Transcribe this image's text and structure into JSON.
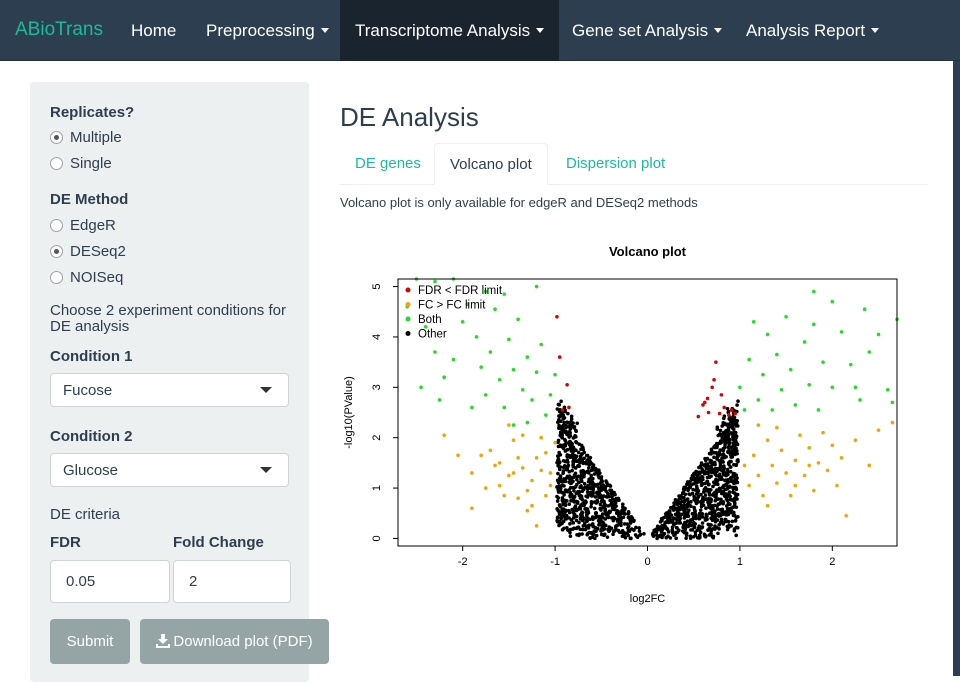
{
  "navbar": {
    "brand": "ABioTrans",
    "items": [
      {
        "label": "Home",
        "dropdown": false,
        "active": false
      },
      {
        "label": "Preprocessing",
        "dropdown": true,
        "active": false
      },
      {
        "label": "Transcriptome Analysis",
        "dropdown": true,
        "active": true
      },
      {
        "label": "Gene set Analysis",
        "dropdown": true,
        "active": false
      },
      {
        "label": "Analysis Report",
        "dropdown": true,
        "active": false
      }
    ]
  },
  "sidebar": {
    "replicates_label": "Replicates?",
    "replicates": [
      {
        "label": "Multiple",
        "selected": true
      },
      {
        "label": "Single",
        "selected": false
      }
    ],
    "method_label": "DE Method",
    "methods": [
      {
        "label": "EdgeR",
        "selected": false
      },
      {
        "label": "DESeq2",
        "selected": true
      },
      {
        "label": "NOISeq",
        "selected": false
      }
    ],
    "choose_text": "Choose 2 experiment conditions for DE analysis",
    "condition1_label": "Condition 1",
    "condition1_value": "Fucose",
    "condition2_label": "Condition 2",
    "condition2_value": "Glucose",
    "criteria_label": "DE criteria",
    "fdr_label": "FDR",
    "fdr_value": "0.05",
    "fc_label": "Fold Change",
    "fc_value": "2",
    "submit_label": "Submit",
    "download_label": "Download plot (PDF)"
  },
  "main": {
    "title": "DE Analysis",
    "tabs": [
      {
        "label": "DE genes",
        "active": false
      },
      {
        "label": "Volcano plot",
        "active": true
      },
      {
        "label": "Dispersion plot",
        "active": false
      }
    ],
    "note": "Volcano plot is only available for edgeR and DESeq2 methods"
  },
  "chart_data": {
    "type": "scatter",
    "title": "Volcano plot",
    "xlabel": "log2FC",
    "ylabel": "-log10(PValue)",
    "xlim": [
      -2.7,
      2.7
    ],
    "ylim": [
      -0.15,
      5.15
    ],
    "xticks": [
      "-2",
      "-1",
      "0",
      "1",
      "2"
    ],
    "yticks": [
      "0",
      "1",
      "2",
      "3",
      "4",
      "5"
    ],
    "legend_position": "top-left",
    "series": [
      {
        "name": "FDR < FDR limit",
        "color": "#dd0000",
        "points": [
          [
            -0.92,
            2.55
          ],
          [
            -0.95,
            3.6
          ],
          [
            -0.98,
            4.4
          ],
          [
            -0.87,
            3.05
          ],
          [
            -0.85,
            2.6
          ],
          [
            0.55,
            2.42
          ],
          [
            0.6,
            2.65
          ],
          [
            0.65,
            2.78
          ],
          [
            0.66,
            2.5
          ],
          [
            0.7,
            3.0
          ],
          [
            0.72,
            3.15
          ],
          [
            0.74,
            3.5
          ],
          [
            0.8,
            2.85
          ],
          [
            0.83,
            2.6
          ],
          [
            0.88,
            2.45
          ],
          [
            0.91,
            2.55
          ],
          [
            0.95,
            2.48
          ],
          [
            0.78,
            2.48
          ],
          [
            0.62,
            2.7
          ]
        ]
      },
      {
        "name": "FC > FC limit",
        "color": "#f5a300",
        "points": [
          [
            -2.2,
            2.05
          ],
          [
            -2.05,
            1.65
          ],
          [
            -1.9,
            1.3
          ],
          [
            -1.8,
            1.65
          ],
          [
            -1.65,
            1.45
          ],
          [
            -1.6,
            1.05
          ],
          [
            -1.5,
            1.25
          ],
          [
            -1.45,
            1.95
          ],
          [
            -1.4,
            1.6
          ],
          [
            -1.35,
            1.4
          ],
          [
            -1.3,
            0.95
          ],
          [
            -1.25,
            1.15
          ],
          [
            -1.2,
            1.6
          ],
          [
            -1.15,
            1.35
          ],
          [
            -1.1,
            0.85
          ],
          [
            -1.05,
            1.05
          ],
          [
            -1.3,
            0.55
          ],
          [
            -1.2,
            0.25
          ],
          [
            -1.0,
            1.9
          ],
          [
            -1.5,
            2.25
          ],
          [
            -1.7,
            1.75
          ],
          [
            -1.75,
            1.0
          ],
          [
            -1.9,
            0.6
          ],
          [
            -1.35,
            2.05
          ],
          [
            -1.15,
            2.0
          ],
          [
            -1.05,
            1.3
          ],
          [
            -1.4,
            0.8
          ],
          [
            -1.25,
            0.65
          ],
          [
            -1.6,
            1.5
          ],
          [
            -1.45,
            1.3
          ],
          [
            -1.55,
            0.85
          ],
          [
            -1.1,
            1.7
          ],
          [
            1.05,
            1.45
          ],
          [
            1.1,
            1.05
          ],
          [
            1.15,
            1.65
          ],
          [
            1.2,
            1.25
          ],
          [
            1.25,
            0.85
          ],
          [
            1.3,
            1.95
          ],
          [
            1.35,
            1.45
          ],
          [
            1.4,
            1.1
          ],
          [
            1.45,
            1.75
          ],
          [
            1.5,
            1.3
          ],
          [
            1.55,
            0.85
          ],
          [
            1.6,
            1.55
          ],
          [
            1.65,
            2.05
          ],
          [
            1.7,
            1.25
          ],
          [
            1.75,
            1.8
          ],
          [
            1.8,
            0.95
          ],
          [
            1.85,
            1.5
          ],
          [
            1.9,
            2.1
          ],
          [
            1.95,
            1.35
          ],
          [
            2.0,
            1.85
          ],
          [
            2.05,
            1.05
          ],
          [
            2.1,
            1.6
          ],
          [
            2.15,
            0.45
          ],
          [
            2.25,
            1.95
          ],
          [
            2.4,
            1.45
          ],
          [
            2.5,
            2.15
          ],
          [
            2.65,
            2.3
          ],
          [
            1.2,
            2.25
          ],
          [
            1.4,
            2.2
          ],
          [
            1.6,
            1.05
          ],
          [
            1.75,
            1.45
          ],
          [
            1.3,
            0.65
          ]
        ]
      },
      {
        "name": "Both",
        "color": "#22dd22",
        "points": [
          [
            -2.5,
            5.15
          ],
          [
            -2.3,
            5.1
          ],
          [
            -2.1,
            5.15
          ],
          [
            -2.6,
            4.6
          ],
          [
            -2.4,
            4.2
          ],
          [
            -2.3,
            3.7
          ],
          [
            -2.2,
            3.2
          ],
          [
            -2.1,
            3.55
          ],
          [
            -2.0,
            4.3
          ],
          [
            -1.95,
            4.65
          ],
          [
            -1.85,
            4.0
          ],
          [
            -1.8,
            3.4
          ],
          [
            -1.75,
            2.85
          ],
          [
            -1.7,
            3.7
          ],
          [
            -1.65,
            4.55
          ],
          [
            -1.6,
            3.15
          ],
          [
            -1.55,
            2.6
          ],
          [
            -1.5,
            3.95
          ],
          [
            -1.45,
            3.35
          ],
          [
            -1.4,
            4.35
          ],
          [
            -1.35,
            2.95
          ],
          [
            -1.3,
            3.6
          ],
          [
            -1.25,
            2.75
          ],
          [
            -1.2,
            3.3
          ],
          [
            -1.15,
            3.85
          ],
          [
            -1.1,
            2.45
          ],
          [
            -1.05,
            2.85
          ],
          [
            -1.0,
            3.25
          ],
          [
            -1.55,
            4.85
          ],
          [
            -1.2,
            5.0
          ],
          [
            -1.75,
            4.9
          ],
          [
            -2.45,
            3.0
          ],
          [
            -2.25,
            2.75
          ],
          [
            -1.9,
            2.6
          ],
          [
            -1.45,
            2.25
          ],
          [
            -1.3,
            2.3
          ],
          [
            1.0,
            3.0
          ],
          [
            1.05,
            2.55
          ],
          [
            1.1,
            3.55
          ],
          [
            1.2,
            2.75
          ],
          [
            1.25,
            3.25
          ],
          [
            1.3,
            4.05
          ],
          [
            1.35,
            2.55
          ],
          [
            1.4,
            3.65
          ],
          [
            1.45,
            2.95
          ],
          [
            1.5,
            4.4
          ],
          [
            1.55,
            3.35
          ],
          [
            1.6,
            2.65
          ],
          [
            1.7,
            3.9
          ],
          [
            1.75,
            3.05
          ],
          [
            1.8,
            4.25
          ],
          [
            1.85,
            2.55
          ],
          [
            1.9,
            3.5
          ],
          [
            2.0,
            3.0
          ],
          [
            2.1,
            4.1
          ],
          [
            2.2,
            3.45
          ],
          [
            2.3,
            2.75
          ],
          [
            2.4,
            3.7
          ],
          [
            2.5,
            4.05
          ],
          [
            2.6,
            2.95
          ],
          [
            2.7,
            4.35
          ],
          [
            2.65,
            2.7
          ],
          [
            1.8,
            4.9
          ],
          [
            2.35,
            4.55
          ],
          [
            1.15,
            4.3
          ],
          [
            2.0,
            4.7
          ],
          [
            2.25,
            3.0
          ]
        ]
      },
      {
        "name": "Other",
        "color": "#000000",
        "points": [
          [
            0.0,
            0.0
          ]
        ]
      }
    ]
  }
}
